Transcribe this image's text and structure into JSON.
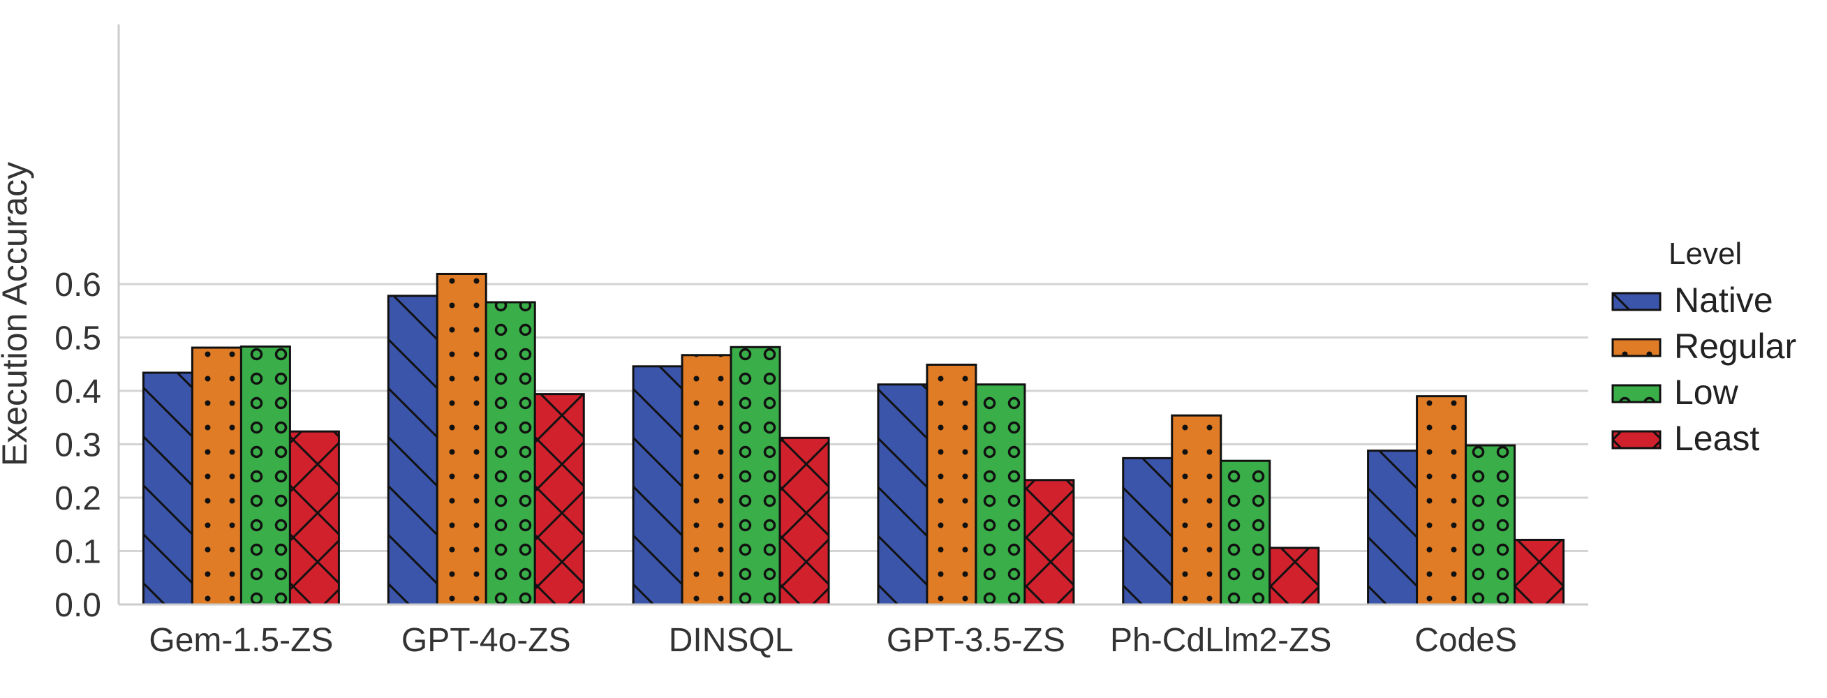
{
  "chart_data": {
    "type": "bar",
    "ylabel": "Execution Accuracy",
    "xlabel": "",
    "ylim": [
      0,
      0.65
    ],
    "yticks": [
      "0.0",
      "0.1",
      "0.2",
      "0.3",
      "0.4",
      "0.5",
      "0.6"
    ],
    "categories": [
      "Gem-1.5-ZS",
      "GPT-4o-ZS",
      "DINSQL",
      "GPT-3.5-ZS",
      "Ph-CdLlm2-ZS",
      "CodeS"
    ],
    "series": [
      {
        "name": "Native",
        "color": "#3b55aa",
        "hatch": "backslash",
        "values": [
          0.434,
          0.578,
          0.446,
          0.412,
          0.274,
          0.288
        ]
      },
      {
        "name": "Regular",
        "color": "#e17c26",
        "hatch": "dots",
        "values": [
          0.481,
          0.619,
          0.467,
          0.449,
          0.354,
          0.39
        ]
      },
      {
        "name": "Low",
        "color": "#3aae48",
        "hatch": "circles",
        "values": [
          0.483,
          0.566,
          0.482,
          0.412,
          0.269,
          0.298
        ]
      },
      {
        "name": "Least",
        "color": "#d0212d",
        "hatch": "crosshatch",
        "values": [
          0.324,
          0.394,
          0.312,
          0.233,
          0.106,
          0.121
        ]
      }
    ],
    "legend": {
      "title": "Level",
      "placement": "center-right outside"
    },
    "grid": "horizontal"
  }
}
